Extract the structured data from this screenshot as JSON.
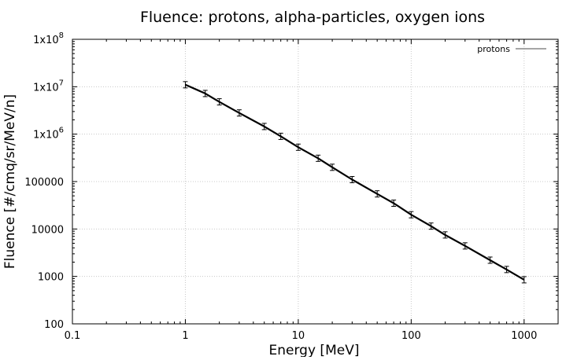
{
  "chart_data": {
    "type": "line",
    "title": "Fluence: protons, alpha-particles, oxygen ions",
    "xlabel": "Energy [MeV]",
    "ylabel": "Fluence [#/cmq/sr/MeV/n]",
    "x_scale": "log",
    "y_scale": "log",
    "xlim": [
      0.1,
      2000
    ],
    "ylim": [
      100,
      100000000
    ],
    "grid": true,
    "legend_position": "top-right",
    "x_ticks": [
      {
        "value": 0.1,
        "label": "0.1"
      },
      {
        "value": 1,
        "label": "1"
      },
      {
        "value": 10,
        "label": "10"
      },
      {
        "value": 100,
        "label": "100"
      },
      {
        "value": 1000,
        "label": "1000"
      }
    ],
    "y_ticks": [
      {
        "value": 100,
        "label": "100",
        "mant": "",
        "exp": ""
      },
      {
        "value": 1000,
        "label": "1000",
        "mant": "",
        "exp": ""
      },
      {
        "value": 10000,
        "label": "10000",
        "mant": "",
        "exp": ""
      },
      {
        "value": 100000,
        "label": "100000",
        "mant": "",
        "exp": ""
      },
      {
        "value": 1000000,
        "label": "",
        "mant": "1x10",
        "exp": "6"
      },
      {
        "value": 10000000,
        "label": "",
        "mant": "1x10",
        "exp": "7"
      },
      {
        "value": 100000000,
        "label": "",
        "mant": "1x10",
        "exp": "8"
      }
    ],
    "series": [
      {
        "name": "protons",
        "color": "#000000",
        "x": [
          1.0,
          1.5,
          2,
          3,
          5,
          7,
          10,
          15,
          20,
          30,
          50,
          70,
          100,
          150,
          200,
          300,
          500,
          700,
          1000
        ],
        "y": [
          11000000,
          7200000,
          4800000,
          2800000,
          1450000,
          900000,
          530000,
          310000,
          200000,
          110000,
          55000,
          35000,
          20000,
          11500,
          7500,
          4400,
          2200,
          1400,
          850
        ]
      }
    ]
  }
}
